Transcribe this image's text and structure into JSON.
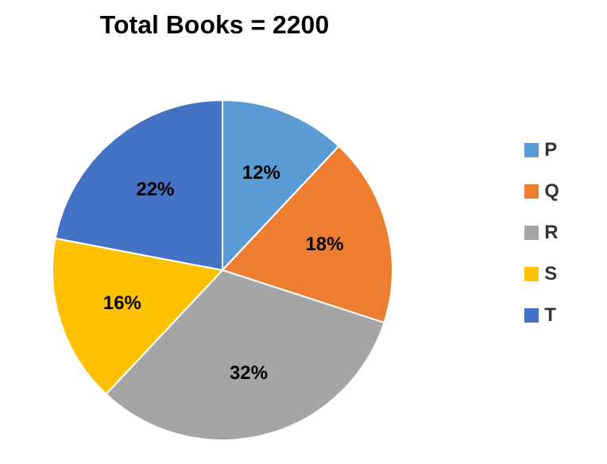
{
  "chart_data": {
    "type": "pie",
    "title": "Total Books = 2200",
    "categories": [
      "P",
      "Q",
      "R",
      "S",
      "T"
    ],
    "values": [
      12,
      18,
      32,
      16,
      22
    ],
    "colors": [
      "#5b9bd5",
      "#ed7d31",
      "#a5a5a5",
      "#ffc000",
      "#4472c4"
    ],
    "value_labels": [
      "12%",
      "18%",
      "32%",
      "16%",
      "22%"
    ],
    "legend": "right"
  }
}
